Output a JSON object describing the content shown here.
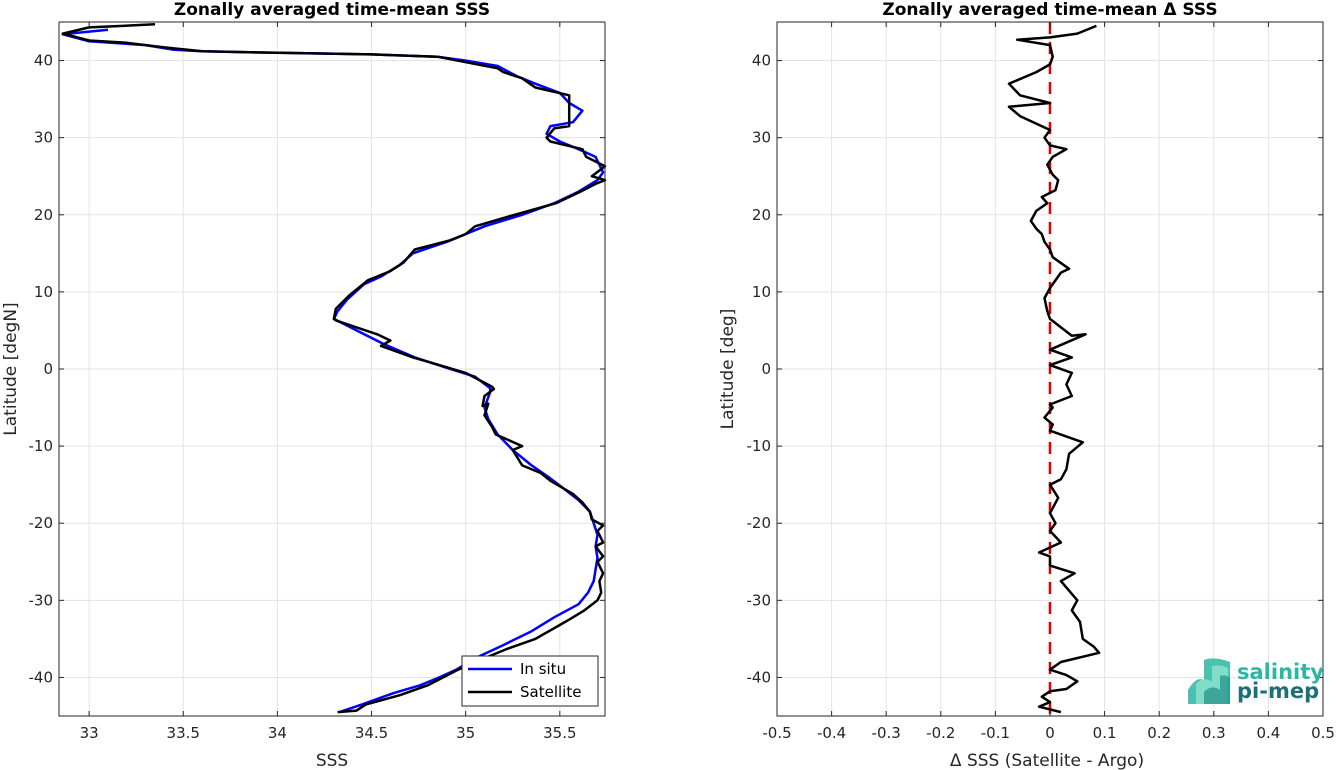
{
  "chart_data": [
    {
      "type": "line",
      "title": "Zonally averaged time-mean SSS",
      "xlabel": "SSS",
      "ylabel": "Latitude [degN]",
      "xlim": [
        32.84,
        35.74
      ],
      "ylim": [
        -45,
        45
      ],
      "xticks": [
        33,
        33.5,
        34,
        34.5,
        35,
        35.5
      ],
      "xtick_labels": [
        "33",
        "33.5",
        "34",
        "34.5",
        "35",
        "35.5"
      ],
      "yticks": [
        -40,
        -30,
        -20,
        -10,
        0,
        10,
        20,
        30,
        40
      ],
      "ytick_labels": [
        "-40",
        "-30",
        "-20",
        "-10",
        "0",
        "10",
        "20",
        "30",
        "40"
      ],
      "grid": true,
      "legend_position": "bottom-right",
      "series": [
        {
          "name": "In situ",
          "color": "#0000ff",
          "points": [
            [
              34.33,
              -44.5
            ],
            [
              34.45,
              -43.5
            ],
            [
              34.62,
              -42
            ],
            [
              34.76,
              -41
            ],
            [
              34.86,
              -40
            ],
            [
              34.95,
              -39
            ],
            [
              35.05,
              -37.5
            ],
            [
              35.2,
              -35.8
            ],
            [
              35.35,
              -34
            ],
            [
              35.47,
              -32.2
            ],
            [
              35.6,
              -30.5
            ],
            [
              35.65,
              -29
            ],
            [
              35.68,
              -27.5
            ],
            [
              35.69,
              -26
            ],
            [
              35.7,
              -24.5
            ],
            [
              35.69,
              -23
            ],
            [
              35.7,
              -21.5
            ],
            [
              35.68,
              -20
            ],
            [
              35.66,
              -18.5
            ],
            [
              35.6,
              -17
            ],
            [
              35.52,
              -15.5
            ],
            [
              35.44,
              -14
            ],
            [
              35.35,
              -12.5
            ],
            [
              35.25,
              -10.5
            ],
            [
              35.17,
              -8.5
            ],
            [
              35.12,
              -6.5
            ],
            [
              35.1,
              -5
            ],
            [
              35.13,
              -3
            ],
            [
              35.13,
              -2.5
            ],
            [
              35.05,
              -1
            ],
            [
              34.92,
              0
            ],
            [
              34.73,
              1.5
            ],
            [
              34.56,
              3.3
            ],
            [
              34.42,
              5
            ],
            [
              34.3,
              6.5
            ],
            [
              34.32,
              7.5
            ],
            [
              34.37,
              9
            ],
            [
              34.46,
              11
            ],
            [
              34.55,
              12
            ],
            [
              34.65,
              13.5
            ],
            [
              34.72,
              15
            ],
            [
              34.9,
              16.5
            ],
            [
              35.1,
              18.5
            ],
            [
              35.3,
              20
            ],
            [
              35.47,
              21.5
            ],
            [
              35.6,
              23
            ],
            [
              35.7,
              24.5
            ],
            [
              35.73,
              25.5
            ],
            [
              35.69,
              27.5
            ],
            [
              35.6,
              28.5
            ],
            [
              35.5,
              29.5
            ],
            [
              35.43,
              30.5
            ],
            [
              35.45,
              31.5
            ],
            [
              35.57,
              32
            ],
            [
              35.62,
              33.5
            ],
            [
              35.55,
              34.5
            ],
            [
              35.5,
              35.8
            ],
            [
              35.37,
              37
            ],
            [
              35.27,
              38
            ],
            [
              35.17,
              39.3
            ],
            [
              35.0,
              40
            ],
            [
              34.85,
              40.5
            ],
            [
              34.5,
              40.8
            ],
            [
              34.0,
              41
            ],
            [
              33.6,
              41.2
            ],
            [
              33.45,
              41.4
            ],
            [
              33.3,
              42
            ],
            [
              33.0,
              42.5
            ],
            [
              32.86,
              43.4
            ],
            [
              33.1,
              44
            ]
          ]
        },
        {
          "name": "Satellite",
          "color": "#000000",
          "points": [
            [
              34.32,
              -44.5
            ],
            [
              34.42,
              -44.3
            ],
            [
              34.47,
              -43.5
            ],
            [
              34.65,
              -42.3
            ],
            [
              34.8,
              -41
            ],
            [
              34.88,
              -40
            ],
            [
              34.96,
              -39
            ],
            [
              35.05,
              -38
            ],
            [
              35.22,
              -36.3
            ],
            [
              35.37,
              -35
            ],
            [
              35.5,
              -33.2
            ],
            [
              35.55,
              -32.5
            ],
            [
              35.63,
              -31.3
            ],
            [
              35.7,
              -30
            ],
            [
              35.72,
              -29
            ],
            [
              35.71,
              -27.5
            ],
            [
              35.73,
              -26.5
            ],
            [
              35.7,
              -25
            ],
            [
              35.73,
              -24.3
            ],
            [
              35.69,
              -23
            ],
            [
              35.73,
              -22.5
            ],
            [
              35.7,
              -21
            ],
            [
              35.73,
              -20.3
            ],
            [
              35.67,
              -19.5
            ],
            [
              35.66,
              -18.5
            ],
            [
              35.62,
              -17.3
            ],
            [
              35.57,
              -16.2
            ],
            [
              35.45,
              -14.5
            ],
            [
              35.4,
              -13.5
            ],
            [
              35.3,
              -12.5
            ],
            [
              35.25,
              -10.5
            ],
            [
              35.3,
              -10
            ],
            [
              35.16,
              -8.5
            ],
            [
              35.14,
              -7.5
            ],
            [
              35.1,
              -6
            ],
            [
              35.12,
              -4.5
            ],
            [
              35.09,
              -4.8
            ],
            [
              35.1,
              -3.5
            ],
            [
              35.15,
              -2.6
            ],
            [
              35.14,
              -2.3
            ],
            [
              35.0,
              -0.5
            ],
            [
              34.86,
              0.5
            ],
            [
              34.72,
              1.5
            ],
            [
              34.55,
              3
            ],
            [
              34.6,
              3.7
            ],
            [
              34.53,
              4.5
            ],
            [
              34.31,
              6.3
            ],
            [
              34.3,
              6.5
            ],
            [
              34.31,
              7.8
            ],
            [
              34.38,
              9.5
            ],
            [
              34.48,
              11.5
            ],
            [
              34.53,
              12
            ],
            [
              34.6,
              12.7
            ],
            [
              34.67,
              13.8
            ],
            [
              34.73,
              15.5
            ],
            [
              34.92,
              16.7
            ],
            [
              35.0,
              17.5
            ],
            [
              35.05,
              18.5
            ],
            [
              35.26,
              20
            ],
            [
              35.48,
              21.5
            ],
            [
              35.61,
              23
            ],
            [
              35.69,
              24
            ],
            [
              35.74,
              24.5
            ],
            [
              35.67,
              25
            ],
            [
              35.74,
              26.3
            ],
            [
              35.64,
              27.5
            ],
            [
              35.62,
              28.5
            ],
            [
              35.45,
              29.5
            ],
            [
              35.43,
              30
            ],
            [
              35.47,
              31.2
            ],
            [
              35.55,
              31.5
            ],
            [
              35.55,
              32.2
            ],
            [
              35.55,
              35.5
            ],
            [
              35.37,
              36.5
            ],
            [
              35.3,
              37.7
            ],
            [
              35.2,
              38.5
            ],
            [
              35.17,
              39
            ],
            [
              35.0,
              39.8
            ],
            [
              34.85,
              40.5
            ],
            [
              34.5,
              40.8
            ],
            [
              34.0,
              41
            ],
            [
              33.6,
              41.2
            ],
            [
              33.4,
              41.7
            ],
            [
              33.2,
              42.3
            ],
            [
              33.0,
              42.6
            ],
            [
              32.86,
              43.5
            ],
            [
              33.0,
              44.3
            ],
            [
              33.35,
              44.7
            ]
          ]
        }
      ]
    },
    {
      "type": "line",
      "title": "Zonally averaged time-mean Δ SSS",
      "xlabel": "Δ SSS (Satellite - Argo)",
      "ylabel": "Latitude [deg]",
      "xlim": [
        -0.5,
        0.5
      ],
      "ylim": [
        -45,
        45
      ],
      "xticks": [
        -0.5,
        -0.4,
        -0.3,
        -0.2,
        -0.1,
        0,
        0.1,
        0.2,
        0.3,
        0.4,
        0.5
      ],
      "xtick_labels": [
        "-0.5",
        "-0.4",
        "-0.3",
        "-0.2",
        "-0.1",
        "0",
        "0.1",
        "0.2",
        "0.3",
        "0.4",
        "0.5"
      ],
      "yticks": [
        -40,
        -30,
        -20,
        -10,
        0,
        10,
        20,
        30,
        40
      ],
      "ytick_labels": [
        "-40",
        "-30",
        "-20",
        "-10",
        "0",
        "10",
        "20",
        "30",
        "40"
      ],
      "grid": true,
      "reference_line": {
        "x": 0,
        "color": "#dd0000",
        "style": "dashed"
      },
      "series": [
        {
          "color": "#000000",
          "points": [
            [
              0.02,
              -44.5
            ],
            [
              -0.02,
              -43.8
            ],
            [
              0.0,
              -43.2
            ],
            [
              -0.015,
              -42.5
            ],
            [
              0.0,
              -41.8
            ],
            [
              0.03,
              -41.5
            ],
            [
              0.05,
              -40.5
            ],
            [
              0.03,
              -39.7
            ],
            [
              0.0,
              -39
            ],
            [
              0.02,
              -38
            ],
            [
              0.09,
              -36.8
            ],
            [
              0.08,
              -36
            ],
            [
              0.06,
              -35
            ],
            [
              0.055,
              -32.8
            ],
            [
              0.04,
              -31.3
            ],
            [
              0.05,
              -30
            ],
            [
              0.02,
              -27.5
            ],
            [
              0.045,
              -26.5
            ],
            [
              0.0,
              -25.5
            ],
            [
              0.0,
              -24.3
            ],
            [
              -0.02,
              -23.8
            ],
            [
              0.02,
              -22.5
            ],
            [
              0.0,
              -21
            ],
            [
              0.01,
              -20
            ],
            [
              0.0,
              -18.7
            ],
            [
              0.015,
              -16.7
            ],
            [
              0.0,
              -15
            ],
            [
              0.02,
              -14.3
            ],
            [
              0.03,
              -13
            ],
            [
              0.035,
              -11
            ],
            [
              0.06,
              -9.5
            ],
            [
              0.04,
              -9
            ],
            [
              0.0,
              -8
            ],
            [
              0.005,
              -7.2
            ],
            [
              -0.01,
              -6.3
            ],
            [
              0.005,
              -5
            ],
            [
              0.0,
              -4.6
            ],
            [
              0.04,
              -3.5
            ],
            [
              0.03,
              -2
            ],
            [
              0.04,
              -0.5
            ],
            [
              0.0,
              0.5
            ],
            [
              0.04,
              1.5
            ],
            [
              0.0,
              2.5
            ],
            [
              0.065,
              4.5
            ],
            [
              0.04,
              4.3
            ],
            [
              0.0,
              6.5
            ],
            [
              -0.005,
              7.5
            ],
            [
              -0.01,
              9.2
            ],
            [
              0.0,
              10.5
            ],
            [
              0.02,
              12.5
            ],
            [
              0.035,
              13
            ],
            [
              0.005,
              14.5
            ],
            [
              0.0,
              15.5
            ],
            [
              -0.01,
              16.5
            ],
            [
              -0.015,
              17.5
            ],
            [
              -0.025,
              18.2
            ],
            [
              -0.035,
              19.2
            ],
            [
              -0.025,
              20.5
            ],
            [
              -0.005,
              21.5
            ],
            [
              -0.015,
              22.3
            ],
            [
              0.01,
              23.2
            ],
            [
              0.015,
              24.5
            ],
            [
              0.005,
              25.2
            ],
            [
              -0.005,
              26.5
            ],
            [
              0.005,
              27.5
            ],
            [
              0.03,
              28.5
            ],
            [
              0.0,
              29
            ],
            [
              -0.01,
              30
            ],
            [
              0.0,
              31
            ],
            [
              -0.055,
              32.8
            ],
            [
              -0.075,
              34
            ],
            [
              0.0,
              34.5
            ],
            [
              -0.055,
              35.5
            ],
            [
              -0.075,
              37
            ],
            [
              -0.025,
              38.5
            ],
            [
              0.0,
              39.5
            ],
            [
              0.005,
              40.5
            ],
            [
              0.0,
              42
            ],
            [
              -0.06,
              42.7
            ],
            [
              0.0,
              43
            ],
            [
              0.05,
              43.5
            ],
            [
              0.085,
              44.5
            ]
          ]
        }
      ]
    }
  ],
  "legend": {
    "entries": [
      {
        "label": "In situ",
        "color": "#0000ff"
      },
      {
        "label": "Satellite",
        "color": "#000000"
      }
    ]
  },
  "logo": {
    "line1": "salinity",
    "line2": "pi-mep"
  }
}
